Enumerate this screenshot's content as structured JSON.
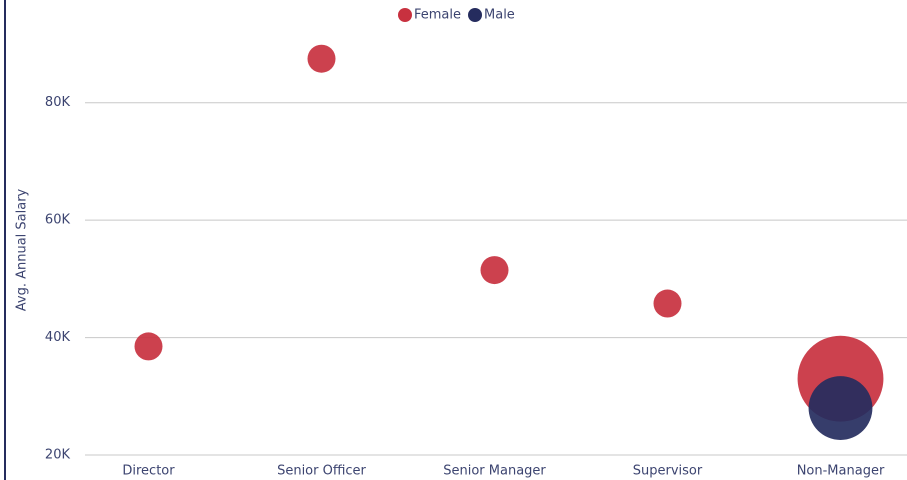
{
  "chart_data": {
    "type": "bubble",
    "y_label": "Avg. Annual Salary",
    "categories": [
      "Director",
      "Senior Officer",
      "Senior Manager",
      "Supervisor",
      "Non-Manager"
    ],
    "series": [
      {
        "name": "Female",
        "color": "#c8313f",
        "values": [
          38500,
          87500,
          51500,
          45800,
          33000
        ],
        "sizes": [
          10,
          10,
          10,
          10,
          94
        ]
      },
      {
        "name": "Male",
        "color": "#252c5e",
        "values": [
          null,
          null,
          null,
          null,
          28000
        ],
        "sizes": [
          null,
          null,
          null,
          null,
          52
        ]
      }
    ],
    "ylim": [
      20000,
      97500
    ],
    "yticks": [
      {
        "value": 20000,
        "label": "20K"
      },
      {
        "value": 40000,
        "label": "40K"
      },
      {
        "value": 60000,
        "label": "60K"
      },
      {
        "value": 80000,
        "label": "80K"
      }
    ],
    "grid": true,
    "legend": "top"
  }
}
